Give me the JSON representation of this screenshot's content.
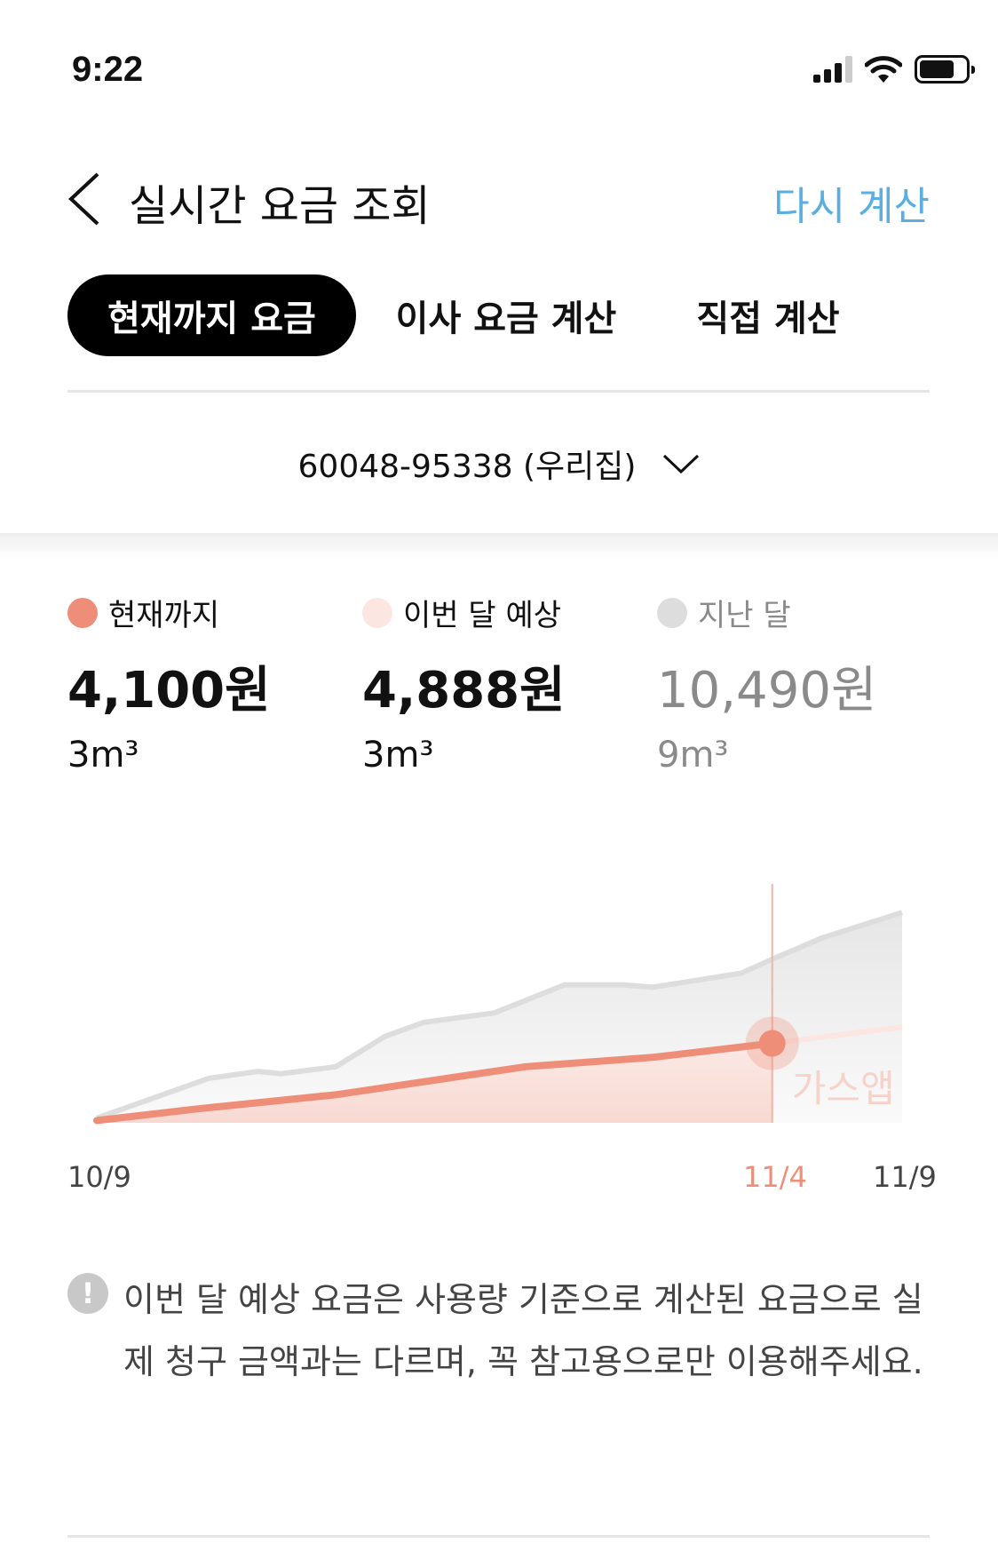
{
  "status_bar": {
    "time": "9:22"
  },
  "header": {
    "title": "실시간 요금 조회",
    "action": "다시 계산"
  },
  "tabs": [
    {
      "label": "현재까지 요금",
      "active": true
    },
    {
      "label": "이사 요금 계산"
    },
    {
      "label": "직접 계산"
    }
  ],
  "account": {
    "selected": "60048-95338 (우리집)"
  },
  "summary": [
    {
      "label": "현재까지",
      "amount": "4,100원",
      "usage": "3m³",
      "color": "#ef8e78"
    },
    {
      "label": "이번 달 예상",
      "amount": "4,888원",
      "usage": "3m³",
      "color": "#fbe6e1"
    },
    {
      "label": "지난 달",
      "amount": "10,490원",
      "usage": "9m³",
      "color": "#dddddd"
    }
  ],
  "chart_data": {
    "type": "area",
    "x_labels": [
      "10/9",
      "11/4",
      "11/9"
    ],
    "today_label": "11/4",
    "watermark": "가스앱",
    "series": [
      {
        "key": "last_month",
        "color": "#dddddd",
        "x": [
          0,
          4.3,
          6.2,
          7.1,
          9.2,
          11.1,
          12.6,
          15.3,
          18,
          20.3,
          21.4,
          24.8,
          26,
          27.9,
          31
        ],
        "y": [
          0.2,
          1.9,
          2.2,
          2.1,
          2.4,
          3.7,
          4.3,
          4.7,
          5.9,
          5.9,
          5.8,
          6.4,
          7.0,
          7.9,
          9.0
        ]
      },
      {
        "key": "current",
        "color": "#ef8e78",
        "x": [
          0,
          3.9,
          9.2,
          16.5,
          21.4,
          26
        ],
        "y": [
          0.1,
          0.6,
          1.2,
          2.4,
          2.8,
          3.4
        ]
      },
      {
        "key": "projected",
        "color": "#fbe6e1",
        "x": [
          26,
          31
        ],
        "y": [
          3.4,
          4.1
        ]
      }
    ],
    "x_range": [
      0,
      31
    ],
    "y_range": [
      0,
      9.5
    ],
    "today_x": 26
  },
  "note": "이번 달 예상 요금은 사용량 기준으로 계산된 요금으로 실제 청구 금액과는 다르며, 꼭 참고용으로만 이용해주세요."
}
